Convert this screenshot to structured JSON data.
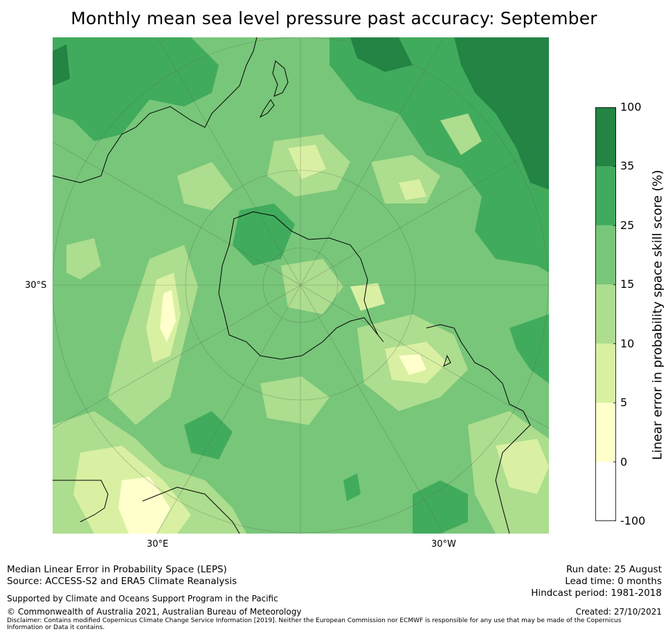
{
  "title": "Monthly mean sea level pressure past accuracy: September",
  "map": {
    "lat_labels": [
      "30°S"
    ],
    "lon_labels": [
      "30°E",
      "30°W"
    ],
    "colors": {
      "ocean_base": "#78c67a",
      "land_line": "#000000",
      "grid": "#556b55"
    }
  },
  "colorbar": {
    "label": "Linear error in probability space skill score (%)",
    "ticks": [
      "100",
      "35",
      "25",
      "15",
      "10",
      "5",
      "0",
      "-100"
    ],
    "bins": [
      {
        "from": 35,
        "to": 100,
        "color": "#238444"
      },
      {
        "from": 25,
        "to": 35,
        "color": "#41ab5d"
      },
      {
        "from": 15,
        "to": 25,
        "color": "#78c67a"
      },
      {
        "from": 10,
        "to": 15,
        "color": "#addd8e"
      },
      {
        "from": 5,
        "to": 10,
        "color": "#d9f0a3"
      },
      {
        "from": 0,
        "to": 5,
        "color": "#ffffcc"
      },
      {
        "from": -100,
        "to": 0,
        "color": "#ffffff"
      }
    ]
  },
  "footer": {
    "line1": "Median Linear Error in Probability Space (LEPS)",
    "line2": "Source: ACCESS-S2 and ERA5 Climate Reanalysis",
    "support": "Supported by Climate and Oceans Support Program in the Pacific",
    "copyright": "© Commonwealth of Australia 2021, Australian Bureau of Meteorology",
    "disclaimer": "Disclaimer: Contains modified Copernicus Climate Change Service Information [2019]. Neither the European Commission nor ECMWF is responsible for any use that may be made of the Copernicus Information or Data it contains.",
    "run_date": "Run date: 25 August",
    "lead_time": "Lead time: 0 months",
    "hindcast": "Hindcast period: 1981-2018",
    "created": "Created: 27/10/2021"
  }
}
